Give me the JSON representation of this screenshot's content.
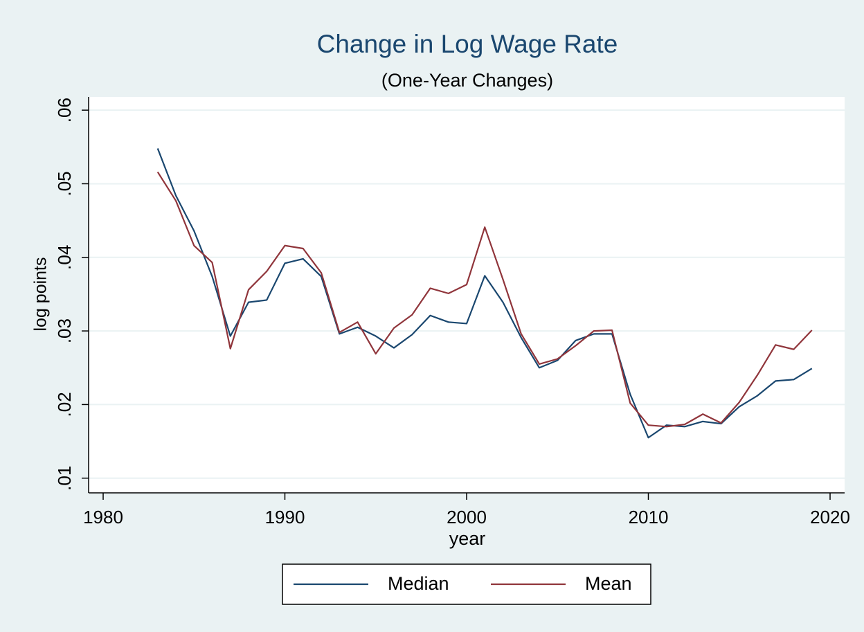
{
  "chart_data": {
    "type": "line",
    "title": "Change in Log Wage Rate",
    "subtitle": "(One-Year Changes)",
    "x_label": "year",
    "y_label": "log points",
    "x": [
      1983,
      1984,
      1985,
      1986,
      1987,
      1988,
      1989,
      1990,
      1991,
      1992,
      1993,
      1994,
      1995,
      1996,
      1997,
      1998,
      1999,
      2000,
      2001,
      2002,
      2003,
      2004,
      2005,
      2006,
      2007,
      2008,
      2009,
      2010,
      2011,
      2012,
      2013,
      2014,
      2015,
      2016,
      2017,
      2018,
      2019
    ],
    "series": [
      {
        "name": "Median",
        "color": "#1a476f",
        "values": [
          0.0548,
          0.0484,
          0.0436,
          0.0374,
          0.0293,
          0.0339,
          0.0342,
          0.0392,
          0.0398,
          0.0374,
          0.0296,
          0.0305,
          0.0293,
          0.0277,
          0.0295,
          0.0321,
          0.0312,
          0.031,
          0.0375,
          0.0339,
          0.0291,
          0.025,
          0.026,
          0.0287,
          0.0296,
          0.0296,
          0.0214,
          0.0155,
          0.0172,
          0.017,
          0.0177,
          0.0174,
          0.0197,
          0.0212,
          0.0232,
          0.0234,
          0.0249
        ]
      },
      {
        "name": "Mean",
        "color": "#90353b",
        "values": [
          0.0516,
          0.0477,
          0.0416,
          0.0393,
          0.0276,
          0.0356,
          0.0381,
          0.0416,
          0.0412,
          0.0379,
          0.0298,
          0.0312,
          0.0269,
          0.0304,
          0.0322,
          0.0358,
          0.0351,
          0.0363,
          0.0441,
          0.037,
          0.0296,
          0.0255,
          0.0262,
          0.028,
          0.03,
          0.0301,
          0.0202,
          0.0172,
          0.017,
          0.0173,
          0.0187,
          0.0175,
          0.0203,
          0.024,
          0.0281,
          0.0275,
          0.0301
        ]
      }
    ],
    "xlim": [
      1979.2,
      2020.8
    ],
    "xticks": [
      1980,
      1990,
      2000,
      2010,
      2020
    ],
    "ylim": [
      0.008,
      0.0618
    ],
    "yticks": [
      {
        "value": 0.01,
        "label": ".01"
      },
      {
        "value": 0.02,
        "label": ".02"
      },
      {
        "value": 0.03,
        "label": ".03"
      },
      {
        "value": 0.04,
        "label": ".04"
      },
      {
        "value": 0.05,
        "label": ".05"
      },
      {
        "value": 0.06,
        "label": ".06"
      }
    ],
    "grid": true,
    "legend": "bottom"
  }
}
